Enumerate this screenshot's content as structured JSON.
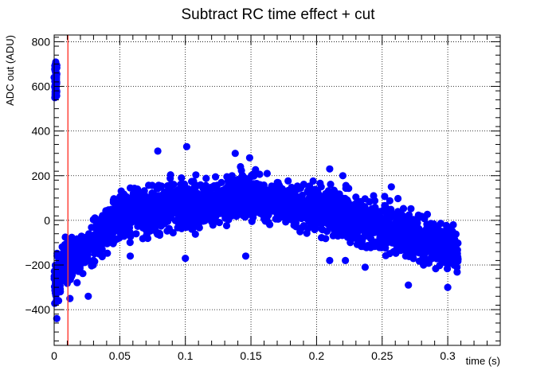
{
  "chart_data": {
    "type": "scatter",
    "title": "Subtract RC time effect + cut",
    "xlabel": "time (s)",
    "ylabel": "ADC out (ADU)",
    "xlim": [
      0,
      0.34
    ],
    "ylim": [
      -560,
      830
    ],
    "x_ticks": [
      0,
      0.05,
      0.1,
      0.15,
      0.2,
      0.25,
      0.3
    ],
    "x_tick_labels": [
      "0",
      "0.05",
      "0.1",
      "0.15",
      "0.2",
      "0.25",
      "0.3"
    ],
    "y_ticks": [
      -400,
      -200,
      0,
      200,
      400,
      600,
      800
    ],
    "y_tick_labels": [
      "−400",
      "−200",
      "0",
      "200",
      "400",
      "600",
      "800"
    ],
    "grid": true,
    "cut_line": {
      "x": 0.0105,
      "color": "#ff3b30"
    },
    "marker_color": "#0000ff",
    "x_range_of_points": [
      0,
      0.308
    ],
    "upper_envelope": [
      [
        0,
        -120
      ],
      [
        0.01,
        -40
      ],
      [
        0.02,
        -10
      ],
      [
        0.03,
        40
      ],
      [
        0.04,
        110
      ],
      [
        0.05,
        160
      ],
      [
        0.06,
        180
      ],
      [
        0.08,
        200
      ],
      [
        0.1,
        220
      ],
      [
        0.12,
        230
      ],
      [
        0.14,
        240
      ],
      [
        0.15,
        250
      ],
      [
        0.17,
        210
      ],
      [
        0.2,
        200
      ],
      [
        0.22,
        170
      ],
      [
        0.24,
        150
      ],
      [
        0.26,
        110
      ],
      [
        0.28,
        70
      ],
      [
        0.3,
        20
      ],
      [
        0.308,
        10
      ]
    ],
    "lower_envelope": [
      [
        0,
        -420
      ],
      [
        0.01,
        -340
      ],
      [
        0.02,
        -290
      ],
      [
        0.03,
        -240
      ],
      [
        0.04,
        -200
      ],
      [
        0.05,
        -150
      ],
      [
        0.07,
        -110
      ],
      [
        0.09,
        -90
      ],
      [
        0.1,
        -90
      ],
      [
        0.12,
        -70
      ],
      [
        0.15,
        -40
      ],
      [
        0.18,
        -60
      ],
      [
        0.2,
        -100
      ],
      [
        0.22,
        -120
      ],
      [
        0.24,
        -170
      ],
      [
        0.26,
        -200
      ],
      [
        0.28,
        -230
      ],
      [
        0.3,
        -260
      ],
      [
        0.308,
        -300
      ]
    ],
    "outliers": [
      [
        0.0,
        640
      ],
      [
        0.0015,
        560
      ],
      [
        0.001,
        700
      ],
      [
        0.079,
        310
      ],
      [
        0.097,
        190
      ],
      [
        0.101,
        330
      ],
      [
        0.138,
        300
      ],
      [
        0.142,
        240
      ],
      [
        0.149,
        280
      ],
      [
        0.21,
        230
      ],
      [
        0.22,
        200
      ],
      [
        0.257,
        150
      ],
      [
        0.002,
        -440
      ],
      [
        0.012,
        -350
      ],
      [
        0.026,
        -340
      ],
      [
        0.058,
        -160
      ],
      [
        0.1,
        -170
      ],
      [
        0.146,
        -160
      ],
      [
        0.21,
        -180
      ],
      [
        0.222,
        -180
      ],
      [
        0.237,
        -210
      ],
      [
        0.27,
        -290
      ],
      [
        0.3,
        -300
      ]
    ]
  }
}
